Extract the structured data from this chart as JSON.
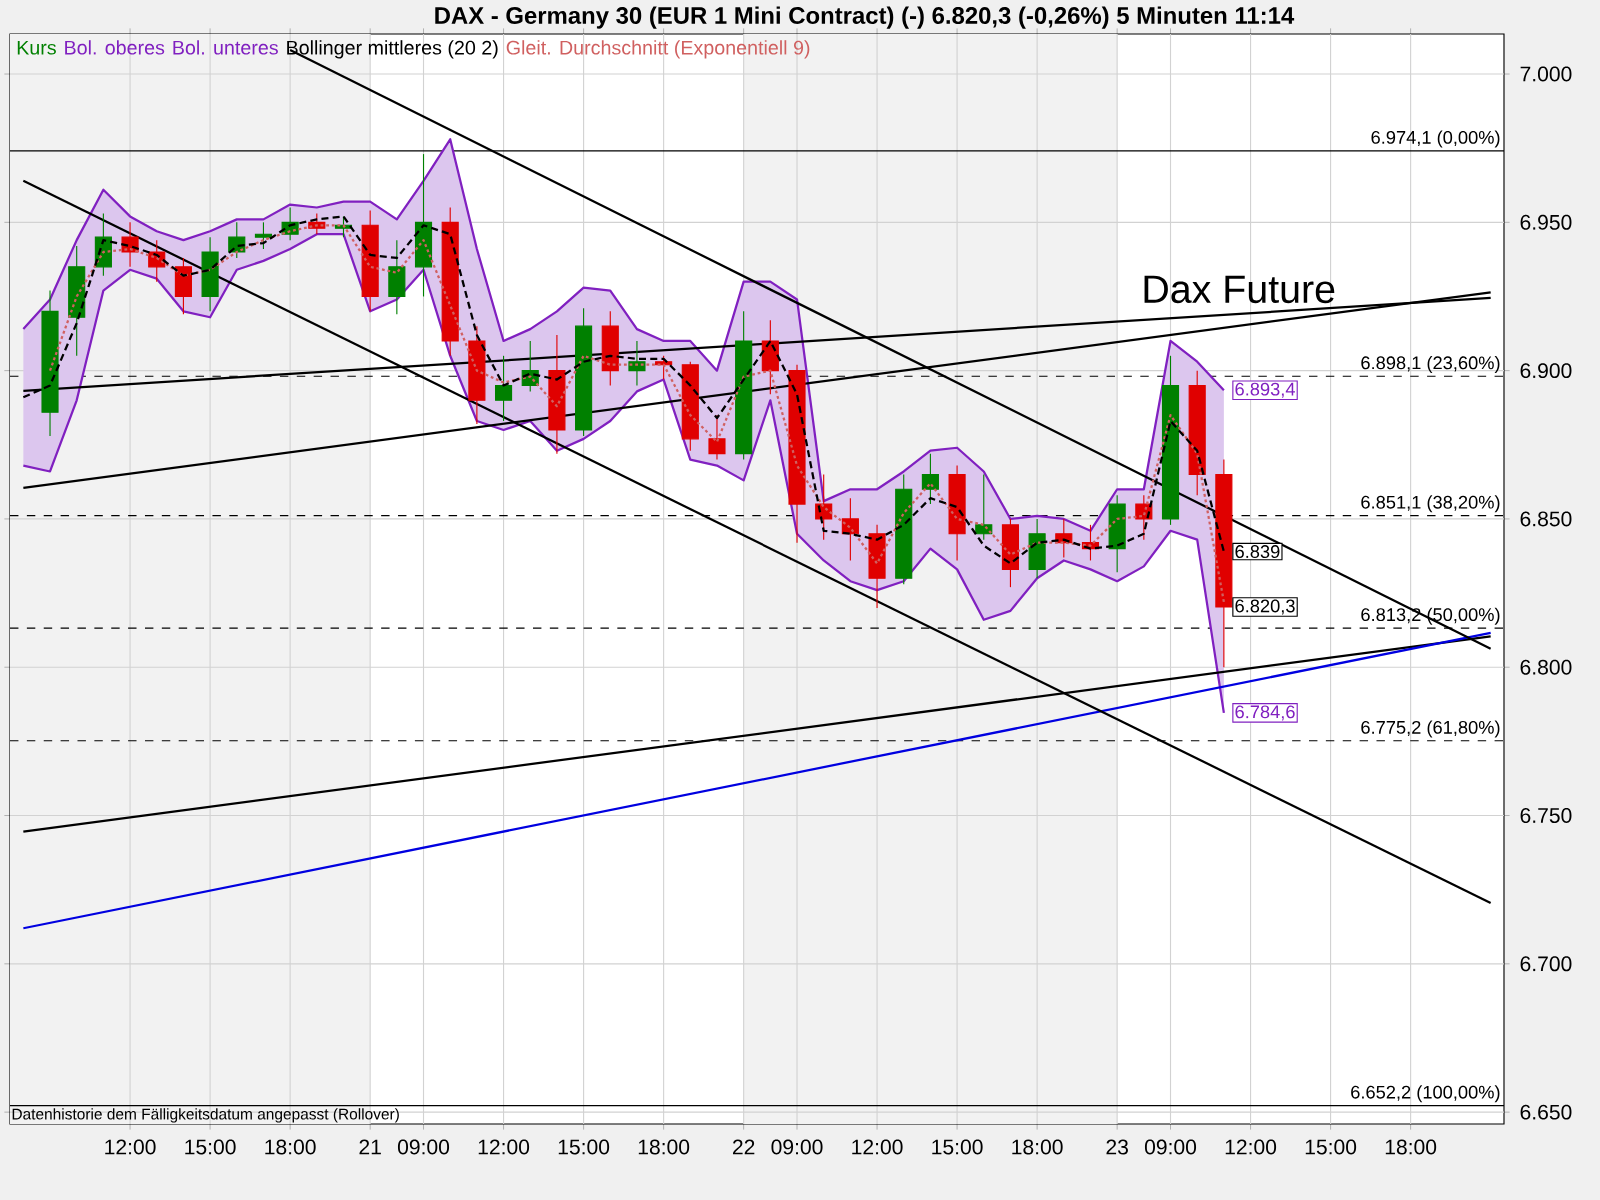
{
  "chart_data": {
    "type": "candlestick",
    "title": "DAX - Germany 30 (EUR 1 Mini Contract) (-)   6.820,3 (-0,26%)   5 Minuten   11:14",
    "categories": [
      null,
      null,
      null,
      null,
      "12:00",
      null,
      null,
      "15:00",
      null,
      null,
      "18:00",
      null,
      null,
      "21",
      null,
      "09:00",
      null,
      null,
      "12:00",
      null,
      null,
      "15:00",
      null,
      null,
      "18:00",
      null,
      null,
      "22",
      null,
      "09:00",
      null,
      null,
      "12:00",
      null,
      null,
      "15:00",
      null,
      null,
      "18:00",
      null,
      null,
      "23",
      null,
      "09:00",
      null,
      null,
      "12:00",
      null,
      null,
      "15:00",
      null,
      null,
      "18:00",
      null,
      null,
      null
    ],
    "ylim": [
      6646,
      7013.5
    ],
    "yticks": [
      {
        "value": 6650,
        "label": "6.650"
      },
      {
        "value": 6700,
        "label": "6.700"
      },
      {
        "value": 6750,
        "label": "6.750"
      },
      {
        "value": 6800,
        "label": "6.800"
      },
      {
        "value": 6850,
        "label": "6.850"
      },
      {
        "value": 6900,
        "label": "6.900"
      },
      {
        "value": 6950,
        "label": "6.950"
      },
      {
        "value": 7000,
        "label": "7.000"
      }
    ],
    "grid": true,
    "legend": "top left",
    "ref_lines": [
      {
        "axis": "y",
        "value": 6974.1,
        "label": "6.974,1 (0,00%)",
        "line_style": "solid",
        "color": "#000000"
      },
      {
        "axis": "y",
        "value": 6898.1,
        "label": "6.898,1 (23,60%)",
        "line_style": "dashed",
        "color": "#000000"
      },
      {
        "axis": "y",
        "value": 6851.1,
        "label": "6.851,1 (38,20%)",
        "line_style": "dashed",
        "color": "#000000"
      },
      {
        "axis": "y",
        "value": 6813.2,
        "label": "6.813,2 (50,00%)",
        "line_style": "dashed",
        "color": "#000000"
      },
      {
        "axis": "y",
        "value": 6775.2,
        "label": "6.775,2 (61,80%)",
        "line_style": "dashed",
        "color": "#000000"
      },
      {
        "axis": "y",
        "value": 6652.2,
        "label": "6.652,2 (100,00%)",
        "line_style": "solid",
        "color": "#000000"
      }
    ],
    "annotations": [
      "Datenhistorie dem Fälligkeitsdatum angepasst (Rollover)",
      "Dax Future"
    ],
    "series": [
      {
        "name": "Kurs",
        "ohlc": [
          null,
          [
            6886,
            6927,
            6878,
            6920
          ],
          [
            6918,
            6942,
            6905,
            6935
          ],
          [
            6935,
            6953,
            6932,
            6945
          ],
          [
            6945,
            6950,
            6935,
            6940
          ],
          [
            6940,
            6944,
            6930,
            6935
          ],
          [
            6935,
            6938,
            6919,
            6925
          ],
          [
            6925,
            6945,
            6920,
            6940
          ],
          [
            6940,
            6950,
            6938,
            6945
          ],
          [
            6945,
            6950,
            6941,
            6946
          ],
          [
            6946,
            6955,
            6944,
            6950
          ],
          [
            6950,
            6953,
            6946,
            6948
          ],
          [
            6948,
            6952,
            6945,
            6949
          ],
          [
            6949,
            6954,
            6920,
            6925
          ],
          [
            6925,
            6944,
            6919,
            6935
          ],
          [
            6935,
            6973,
            6925,
            6950
          ],
          [
            6950,
            6955,
            6905,
            6910
          ],
          [
            6910,
            6915,
            6882,
            6890
          ],
          [
            6890,
            6905,
            6883,
            6895
          ],
          [
            6895,
            6910,
            6893,
            6900
          ],
          [
            6900,
            6912,
            6872,
            6880
          ],
          [
            6880,
            6921,
            6878,
            6915
          ],
          [
            6915,
            6920,
            6895,
            6900
          ],
          [
            6900,
            6910,
            6895,
            6903
          ],
          [
            6903,
            6905,
            6897,
            6902
          ],
          [
            6902,
            6903,
            6873,
            6877
          ],
          [
            6877,
            6885,
            6870,
            6872
          ],
          [
            6872,
            6920,
            6870,
            6910
          ],
          [
            6910,
            6917,
            6892,
            6900
          ],
          [
            6900,
            6902,
            6842,
            6855
          ],
          [
            6855,
            6865,
            6843,
            6850
          ],
          [
            6850,
            6857,
            6836,
            6845
          ],
          [
            6845,
            6848,
            6820,
            6830
          ],
          [
            6830,
            6865,
            6828,
            6860
          ],
          [
            6860,
            6872,
            6855,
            6865
          ],
          [
            6865,
            6868,
            6836,
            6845
          ],
          [
            6845,
            6865,
            6843,
            6848
          ],
          [
            6848,
            6850,
            6827,
            6833
          ],
          [
            6833,
            6850,
            6830,
            6845
          ],
          [
            6845,
            6850,
            6837,
            6842
          ],
          [
            6842,
            6848,
            6836,
            6840
          ],
          [
            6840,
            6858,
            6832,
            6855
          ],
          [
            6855,
            6858,
            6843,
            6850
          ],
          [
            6850,
            6905,
            6848,
            6895
          ],
          [
            6895,
            6900,
            6858,
            6865
          ],
          [
            6865,
            6870,
            6800,
            6820.3
          ],
          null,
          null,
          null,
          null,
          null,
          null,
          null,
          null,
          null,
          null
        ],
        "colors": [
          null,
          "#008000",
          "#008000",
          "#008000",
          "#e00000",
          "#e00000",
          "#e00000",
          "#008000",
          "#008000",
          "#008000",
          "#008000",
          "#e00000",
          "#008000",
          "#e00000",
          "#008000",
          "#008000",
          "#e00000",
          "#e00000",
          "#008000",
          "#008000",
          "#e00000",
          "#008000",
          "#e00000",
          "#008000",
          "#e00000",
          "#e00000",
          "#e00000",
          "#008000",
          "#e00000",
          "#e00000",
          "#e00000",
          "#e00000",
          "#e00000",
          "#008000",
          "#008000",
          "#e00000",
          "#008000",
          "#e00000",
          "#008000",
          "#e00000",
          "#e00000",
          "#008000",
          "#e00000",
          "#008000",
          "#e00000",
          "#e00000",
          null,
          null,
          null,
          null,
          null,
          null,
          null,
          null,
          null,
          null
        ],
        "value_labels": [
          null,
          null,
          null,
          null,
          null,
          null,
          null,
          null,
          null,
          null,
          null,
          null,
          null,
          null,
          null,
          null,
          null,
          null,
          null,
          null,
          null,
          null,
          null,
          null,
          null,
          null,
          null,
          null,
          null,
          null,
          null,
          null,
          null,
          null,
          null,
          null,
          null,
          null,
          null,
          null,
          null,
          null,
          null,
          null,
          null,
          "6.820,3",
          null,
          null,
          null,
          null,
          null,
          null,
          null,
          null,
          null,
          null
        ]
      },
      {
        "name": "Bol. oberes",
        "type": "line",
        "color": "#8020c0",
        "values": [
          6914,
          6924,
          6944,
          6961,
          6952,
          6947,
          6944,
          6947,
          6951,
          6951,
          6956,
          6955,
          6957,
          6957,
          6951,
          6964,
          6978,
          6941,
          6910,
          6914,
          6920,
          6928,
          6927,
          6914,
          6910,
          6910,
          6900,
          6930,
          6930,
          6924,
          6856,
          6860,
          6860,
          6866,
          6873,
          6874,
          6866,
          6850,
          6851,
          6850,
          6846,
          6860,
          6860,
          6910,
          6903,
          6893.4,
          null,
          null,
          null,
          null,
          null,
          null,
          null,
          null,
          null,
          null
        ],
        "value_labels": [
          null,
          null,
          null,
          null,
          null,
          null,
          null,
          null,
          null,
          null,
          null,
          null,
          null,
          null,
          null,
          null,
          null,
          null,
          null,
          null,
          null,
          null,
          null,
          null,
          null,
          null,
          null,
          null,
          null,
          null,
          null,
          null,
          null,
          null,
          null,
          null,
          null,
          null,
          null,
          null,
          null,
          null,
          null,
          null,
          null,
          "6.893,4",
          null,
          null,
          null,
          null,
          null,
          null,
          null,
          null,
          null,
          null
        ]
      },
      {
        "name": "Bol. unteres",
        "type": "line",
        "color": "#8020c0",
        "values": [
          6868,
          6866,
          6890,
          6927,
          6934,
          6931,
          6920,
          6918,
          6934,
          6937,
          6941,
          6946,
          6946,
          6920,
          6924,
          6934,
          6905,
          6883,
          6880,
          6883,
          6873,
          6877,
          6883,
          6893,
          6897,
          6870,
          6868,
          6863,
          6890,
          6845,
          6836,
          6829,
          6826,
          6829,
          6840,
          6833,
          6816,
          6819,
          6830,
          6836,
          6833,
          6829,
          6834,
          6846,
          6843,
          6784.6,
          null,
          null,
          null,
          null,
          null,
          null,
          null,
          null,
          null,
          null
        ],
        "value_labels": [
          null,
          null,
          null,
          null,
          null,
          null,
          null,
          null,
          null,
          null,
          null,
          null,
          null,
          null,
          null,
          null,
          null,
          null,
          null,
          null,
          null,
          null,
          null,
          null,
          null,
          null,
          null,
          null,
          null,
          null,
          null,
          null,
          null,
          null,
          null,
          null,
          null,
          null,
          null,
          null,
          null,
          null,
          null,
          null,
          null,
          "6.784,6",
          null,
          null,
          null,
          null,
          null,
          null,
          null,
          null,
          null,
          null
        ]
      },
      {
        "name": "Bollinger mittleres (20 2)",
        "type": "line",
        "color": "#000000",
        "line_style": "dashed",
        "values": [
          6891,
          6895,
          6916,
          6944,
          6942,
          6939,
          6932,
          6934,
          6942,
          6943,
          6949,
          6951,
          6952,
          6939,
          6938,
          6949,
          6946,
          6912,
          6895,
          6899,
          6897,
          6903,
          6905,
          6904,
          6904,
          6895,
          6884,
          6897,
          6910,
          6892,
          6846,
          6845,
          6843,
          6848,
          6857,
          6854,
          6841,
          6835,
          6842,
          6843,
          6840,
          6841,
          6845,
          6883,
          6873,
          6839,
          null,
          null,
          null,
          null,
          null,
          null,
          null,
          null,
          null,
          null
        ],
        "lower": [
          6868,
          6866,
          6890,
          6927,
          6934,
          6931,
          6920,
          6918,
          6934,
          6937,
          6941,
          6946,
          6946,
          6920,
          6924,
          6934,
          6905,
          6883,
          6880,
          6883,
          6873,
          6877,
          6883,
          6893,
          6897,
          6870,
          6868,
          6863,
          6890,
          6845,
          6836,
          6829,
          6826,
          6829,
          6840,
          6833,
          6816,
          6819,
          6830,
          6836,
          6833,
          6829,
          6834,
          6846,
          6843,
          6784.6,
          null,
          null,
          null,
          null,
          null,
          null,
          null,
          null,
          null,
          null
        ],
        "upper": [
          6914,
          6924,
          6944,
          6961,
          6952,
          6947,
          6944,
          6947,
          6951,
          6951,
          6956,
          6955,
          6957,
          6957,
          6951,
          6964,
          6978,
          6941,
          6910,
          6914,
          6920,
          6928,
          6927,
          6914,
          6910,
          6910,
          6900,
          6930,
          6930,
          6924,
          6856,
          6860,
          6860,
          6866,
          6873,
          6874,
          6866,
          6850,
          6851,
          6850,
          6846,
          6860,
          6860,
          6910,
          6903,
          6893.4,
          null,
          null,
          null,
          null,
          null,
          null,
          null,
          null,
          null,
          null
        ],
        "value_labels": [
          null,
          null,
          null,
          null,
          null,
          null,
          null,
          null,
          null,
          null,
          null,
          null,
          null,
          null,
          null,
          null,
          null,
          null,
          null,
          null,
          null,
          null,
          null,
          null,
          null,
          null,
          null,
          null,
          null,
          null,
          null,
          null,
          null,
          null,
          null,
          null,
          null,
          null,
          null,
          null,
          null,
          null,
          null,
          null,
          null,
          "6.839",
          null,
          null,
          null,
          null,
          null,
          null,
          null,
          null,
          null,
          null
        ]
      },
      {
        "name": "Gleit. Durchschnitt (Exponentiell 9)",
        "type": "line",
        "color": "#d06060",
        "line_style": "dotted",
        "values": [
          null,
          6900,
          6925,
          6940,
          6941,
          6938,
          6932,
          6934,
          6940,
          6944,
          6947,
          6949,
          6949,
          6935,
          6933,
          6944,
          6922,
          6900,
          6896,
          6898,
          6888,
          6905,
          6902,
          6902,
          6902,
          6885,
          6876,
          6898,
          6900,
          6868,
          6854,
          6847,
          6835,
          6852,
          6862,
          6850,
          6848,
          6838,
          6842,
          6842,
          6841,
          6850,
          6851,
          6885,
          6872,
          6822,
          null,
          null,
          null,
          null,
          null,
          null,
          null,
          null,
          null,
          null
        ]
      },
      {
        "type": "line",
        "color": "#000000",
        "values": [
          6860.5,
          null,
          null,
          null,
          null,
          null,
          null,
          null,
          null,
          null,
          null,
          null,
          null,
          null,
          null,
          null,
          null,
          null,
          null,
          null,
          null,
          null,
          null,
          null,
          null,
          null,
          null,
          null,
          null,
          null,
          null,
          null,
          null,
          null,
          null,
          null,
          null,
          null,
          null,
          null,
          null,
          null,
          null,
          null,
          null,
          null,
          null,
          null,
          null,
          null,
          null,
          null,
          null,
          null,
          null,
          6926.4
        ]
      },
      {
        "type": "line",
        "color": "#000000",
        "values": [
          6893.2,
          null,
          null,
          null,
          null,
          null,
          null,
          null,
          null,
          null,
          null,
          null,
          null,
          null,
          null,
          null,
          null,
          null,
          null,
          null,
          null,
          null,
          null,
          null,
          null,
          null,
          null,
          null,
          null,
          null,
          null,
          null,
          null,
          null,
          null,
          null,
          null,
          null,
          null,
          null,
          null,
          null,
          null,
          null,
          null,
          null,
          null,
          null,
          null,
          null,
          null,
          null,
          null,
          null,
          null,
          6924.5
        ]
      },
      {
        "type": "line",
        "color": "#000000",
        "values": [
          6744.6,
          null,
          null,
          null,
          null,
          null,
          null,
          null,
          null,
          null,
          null,
          null,
          null,
          null,
          null,
          null,
          null,
          null,
          null,
          null,
          null,
          null,
          null,
          null,
          null,
          null,
          null,
          null,
          null,
          null,
          null,
          null,
          null,
          null,
          null,
          null,
          null,
          null,
          null,
          null,
          null,
          null,
          null,
          null,
          null,
          null,
          null,
          null,
          null,
          null,
          null,
          null,
          null,
          null,
          null,
          6810.4
        ]
      },
      {
        "type": "line",
        "color": "#0000e0",
        "values": [
          6712.0,
          null,
          null,
          null,
          null,
          null,
          null,
          null,
          null,
          null,
          null,
          null,
          null,
          null,
          null,
          null,
          null,
          null,
          null,
          null,
          null,
          null,
          null,
          null,
          null,
          null,
          null,
          null,
          null,
          null,
          null,
          null,
          null,
          null,
          null,
          null,
          null,
          null,
          null,
          null,
          null,
          null,
          null,
          null,
          null,
          null,
          null,
          null,
          null,
          null,
          null,
          null,
          null,
          null,
          null,
          6811.6
        ]
      },
      {
        "type": "line",
        "color": "#000000",
        "values": [
          null,
          null,
          null,
          null,
          null,
          null,
          null,
          null,
          null,
          null,
          7008.1,
          null,
          null,
          null,
          null,
          null,
          null,
          null,
          null,
          null,
          null,
          null,
          null,
          null,
          null,
          null,
          null,
          null,
          null,
          null,
          null,
          null,
          null,
          null,
          null,
          null,
          null,
          null,
          null,
          null,
          null,
          null,
          null,
          null,
          null,
          null,
          null,
          null,
          null,
          null,
          null,
          null,
          null,
          null,
          null,
          6806.2
        ]
      },
      {
        "type": "line",
        "color": "#000000",
        "values": [
          6964.0,
          null,
          null,
          null,
          null,
          null,
          null,
          null,
          null,
          null,
          null,
          null,
          null,
          null,
          null,
          null,
          null,
          null,
          null,
          null,
          null,
          null,
          null,
          null,
          null,
          null,
          null,
          null,
          null,
          null,
          null,
          null,
          null,
          null,
          null,
          null,
          null,
          null,
          null,
          null,
          null,
          null,
          null,
          null,
          null,
          null,
          null,
          null,
          null,
          null,
          null,
          null,
          null,
          null,
          null,
          6720.5
        ]
      }
    ]
  }
}
